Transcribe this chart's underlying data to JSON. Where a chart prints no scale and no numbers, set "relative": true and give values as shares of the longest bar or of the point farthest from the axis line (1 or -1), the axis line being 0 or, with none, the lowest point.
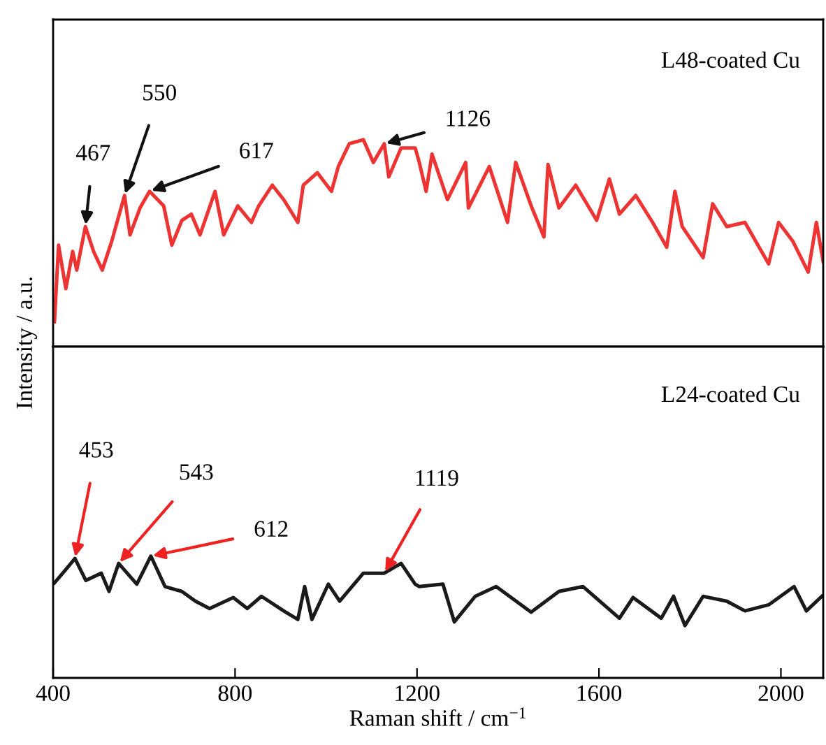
{
  "chart_data": [
    {
      "type": "line",
      "relative": true,
      "ylabel": "Intensity / a.u.",
      "xlim": [
        400,
        2093
      ],
      "tick_labels": false,
      "grid": false,
      "legend": false,
      "marker": "none",
      "line_style": "solid",
      "series": [
        {
          "name": "L48-coated Cu",
          "color": "#ee3333",
          "x": [
            403,
            412,
            428,
            443,
            452,
            471,
            489,
            508,
            529,
            557,
            569,
            591,
            612,
            643,
            661,
            683,
            704,
            723,
            756,
            775,
            806,
            836,
            852,
            882,
            907,
            938,
            950,
            981,
            1012,
            1027,
            1051,
            1082,
            1104,
            1128,
            1138,
            1165,
            1196,
            1205,
            1220,
            1233,
            1267,
            1307,
            1313,
            1359,
            1399,
            1417,
            1451,
            1479,
            1488,
            1512,
            1549,
            1595,
            1623,
            1645,
            1681,
            1718,
            1749,
            1767,
            1783,
            1829,
            1850,
            1881,
            1921,
            1973,
            1995,
            2026,
            2060,
            2078,
            2093
          ],
          "values": [
            0.12,
            0.49,
            0.28,
            0.46,
            0.37,
            0.58,
            0.46,
            0.37,
            0.51,
            0.73,
            0.54,
            0.67,
            0.75,
            0.68,
            0.49,
            0.61,
            0.64,
            0.54,
            0.75,
            0.54,
            0.68,
            0.6,
            0.68,
            0.78,
            0.71,
            0.6,
            0.78,
            0.84,
            0.75,
            0.87,
            0.98,
            1.0,
            0.89,
            0.98,
            0.82,
            0.96,
            0.96,
            0.89,
            0.75,
            0.93,
            0.71,
            0.89,
            0.67,
            0.87,
            0.6,
            0.89,
            0.68,
            0.53,
            0.88,
            0.67,
            0.78,
            0.61,
            0.81,
            0.64,
            0.73,
            0.6,
            0.48,
            0.75,
            0.58,
            0.43,
            0.69,
            0.58,
            0.6,
            0.4,
            0.6,
            0.51,
            0.36,
            0.6,
            0.41
          ]
        }
      ],
      "annotations": [
        {
          "text": "467",
          "x": 471,
          "y": 0.58
        },
        {
          "text": "550",
          "x": 557,
          "y": 0.73
        },
        {
          "text": "617",
          "x": 612,
          "y": 0.75
        },
        {
          "text": "1126",
          "x": 1128,
          "y": 0.98
        }
      ]
    },
    {
      "type": "line",
      "relative": true,
      "xlabel": "Raman shift / cm$^{−1}$",
      "xlim": [
        400,
        2093
      ],
      "xticks": [
        400,
        800,
        1200,
        1600,
        2000
      ],
      "tick_labels": "x",
      "grid": false,
      "legend": false,
      "marker": "none",
      "line_style": "solid",
      "series": [
        {
          "name": "L24-coated Cu",
          "color": "#1a1a1a",
          "x": [
            403,
            428,
            448,
            472,
            506,
            523,
            544,
            584,
            615,
            646,
            683,
            713,
            744,
            796,
            827,
            858,
            907,
            938,
            953,
            969,
            1005,
            1030,
            1082,
            1128,
            1165,
            1196,
            1205,
            1257,
            1282,
            1328,
            1374,
            1451,
            1512,
            1565,
            1645,
            1675,
            1737,
            1764,
            1789,
            1829,
            1881,
            1921,
            1973,
            2029,
            2056,
            2090
          ],
          "values": [
            0.78,
            0.89,
            0.98,
            0.8,
            0.86,
            0.71,
            0.94,
            0.77,
            1.0,
            0.75,
            0.71,
            0.63,
            0.57,
            0.66,
            0.57,
            0.67,
            0.55,
            0.48,
            0.75,
            0.48,
            0.77,
            0.63,
            0.86,
            0.86,
            0.94,
            0.77,
            0.75,
            0.77,
            0.46,
            0.67,
            0.75,
            0.54,
            0.71,
            0.75,
            0.49,
            0.66,
            0.49,
            0.67,
            0.43,
            0.67,
            0.63,
            0.55,
            0.6,
            0.75,
            0.55,
            0.67
          ]
        }
      ],
      "annotations": [
        {
          "text": "453",
          "x": 448,
          "y": 0.98
        },
        {
          "text": "543",
          "x": 544,
          "y": 0.94
        },
        {
          "text": "612",
          "x": 615,
          "y": 1.0
        },
        {
          "text": "1119",
          "x": 1128,
          "y": 0.86
        }
      ]
    }
  ]
}
